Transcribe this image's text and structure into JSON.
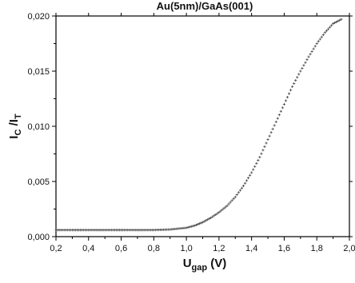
{
  "chart_data": {
    "type": "scatter",
    "title": "Au(5nm)/GaAs(001)",
    "xlabel_main": "U",
    "xlabel_sub": "gap",
    "xlabel_unit": " (V)",
    "ylabel_main_1": "I",
    "ylabel_sub_1": "C",
    "ylabel_main_2": " /I",
    "ylabel_sub_2": "T",
    "xlim": [
      0.2,
      2.0
    ],
    "ylim": [
      0.0,
      0.02
    ],
    "xticks": [
      "0,2",
      "0,4",
      "0,6",
      "0,8",
      "1,0",
      "1,2",
      "1,4",
      "1,6",
      "1,8",
      "2,0"
    ],
    "yticks": [
      "0,000",
      "0,005",
      "0,010",
      "0,015",
      "0,020"
    ],
    "grid": false,
    "marker": "cross",
    "series": [
      {
        "x": [
          0.2,
          0.3,
          0.4,
          0.5,
          0.6,
          0.7,
          0.8,
          0.9,
          1.0,
          1.05,
          1.1,
          1.15,
          1.2,
          1.25,
          1.3,
          1.35,
          1.4,
          1.45,
          1.5,
          1.55,
          1.6,
          1.65,
          1.7,
          1.75,
          1.8,
          1.85,
          1.9,
          1.95
        ],
        "y": [
          0.0006,
          0.0006,
          0.0006,
          0.0006,
          0.0006,
          0.0006,
          0.0006,
          0.00065,
          0.0008,
          0.001,
          0.0013,
          0.0017,
          0.0022,
          0.0028,
          0.0036,
          0.0046,
          0.0058,
          0.0072,
          0.0088,
          0.0104,
          0.012,
          0.0136,
          0.015,
          0.0163,
          0.0175,
          0.0185,
          0.0193,
          0.0197
        ]
      }
    ]
  }
}
